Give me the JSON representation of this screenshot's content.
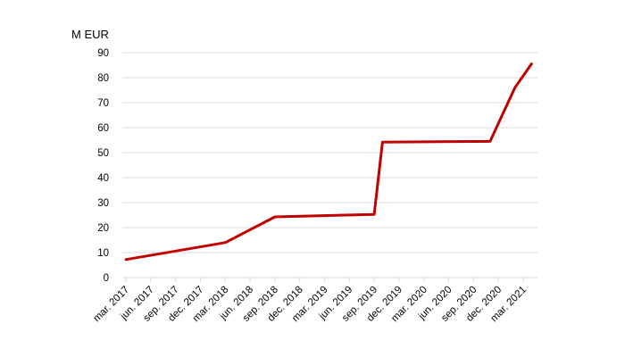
{
  "chart_data": {
    "type": "line",
    "ylabel": "M EUR",
    "xlabel": "",
    "ylim": [
      0,
      90
    ],
    "yticks": [
      0,
      10,
      20,
      30,
      40,
      50,
      60,
      70,
      80,
      90
    ],
    "categories": [
      "mar. 2017",
      "jun. 2017",
      "sep. 2017",
      "dec. 2017",
      "mar. 2018",
      "jun. 2018",
      "sep. 2018",
      "dec. 2018",
      "mar. 2019",
      "jun. 2019",
      "sep. 2019",
      "dec. 2019",
      "mar. 2020",
      "jun. 2020",
      "sep. 2020",
      "dec. 2020",
      "mar. 2021"
    ],
    "series": [
      {
        "color": "#c00000",
        "points": [
          {
            "x": "mar. 2017",
            "y": 7.2
          },
          {
            "x": "mar. 2018",
            "y": 14.0
          },
          {
            "x": "sep. 2018",
            "y": 24.3
          },
          {
            "x": "sep. 2019",
            "y": 25.3
          },
          {
            "x": "oct. 2019",
            "y": 54.2
          },
          {
            "x": "nov. 2020",
            "y": 54.5
          },
          {
            "x": "feb. 2021",
            "y": 76.0
          },
          {
            "x": "apr. 2021",
            "y": 85.5
          }
        ]
      }
    ],
    "grid": true,
    "legend": "none"
  }
}
